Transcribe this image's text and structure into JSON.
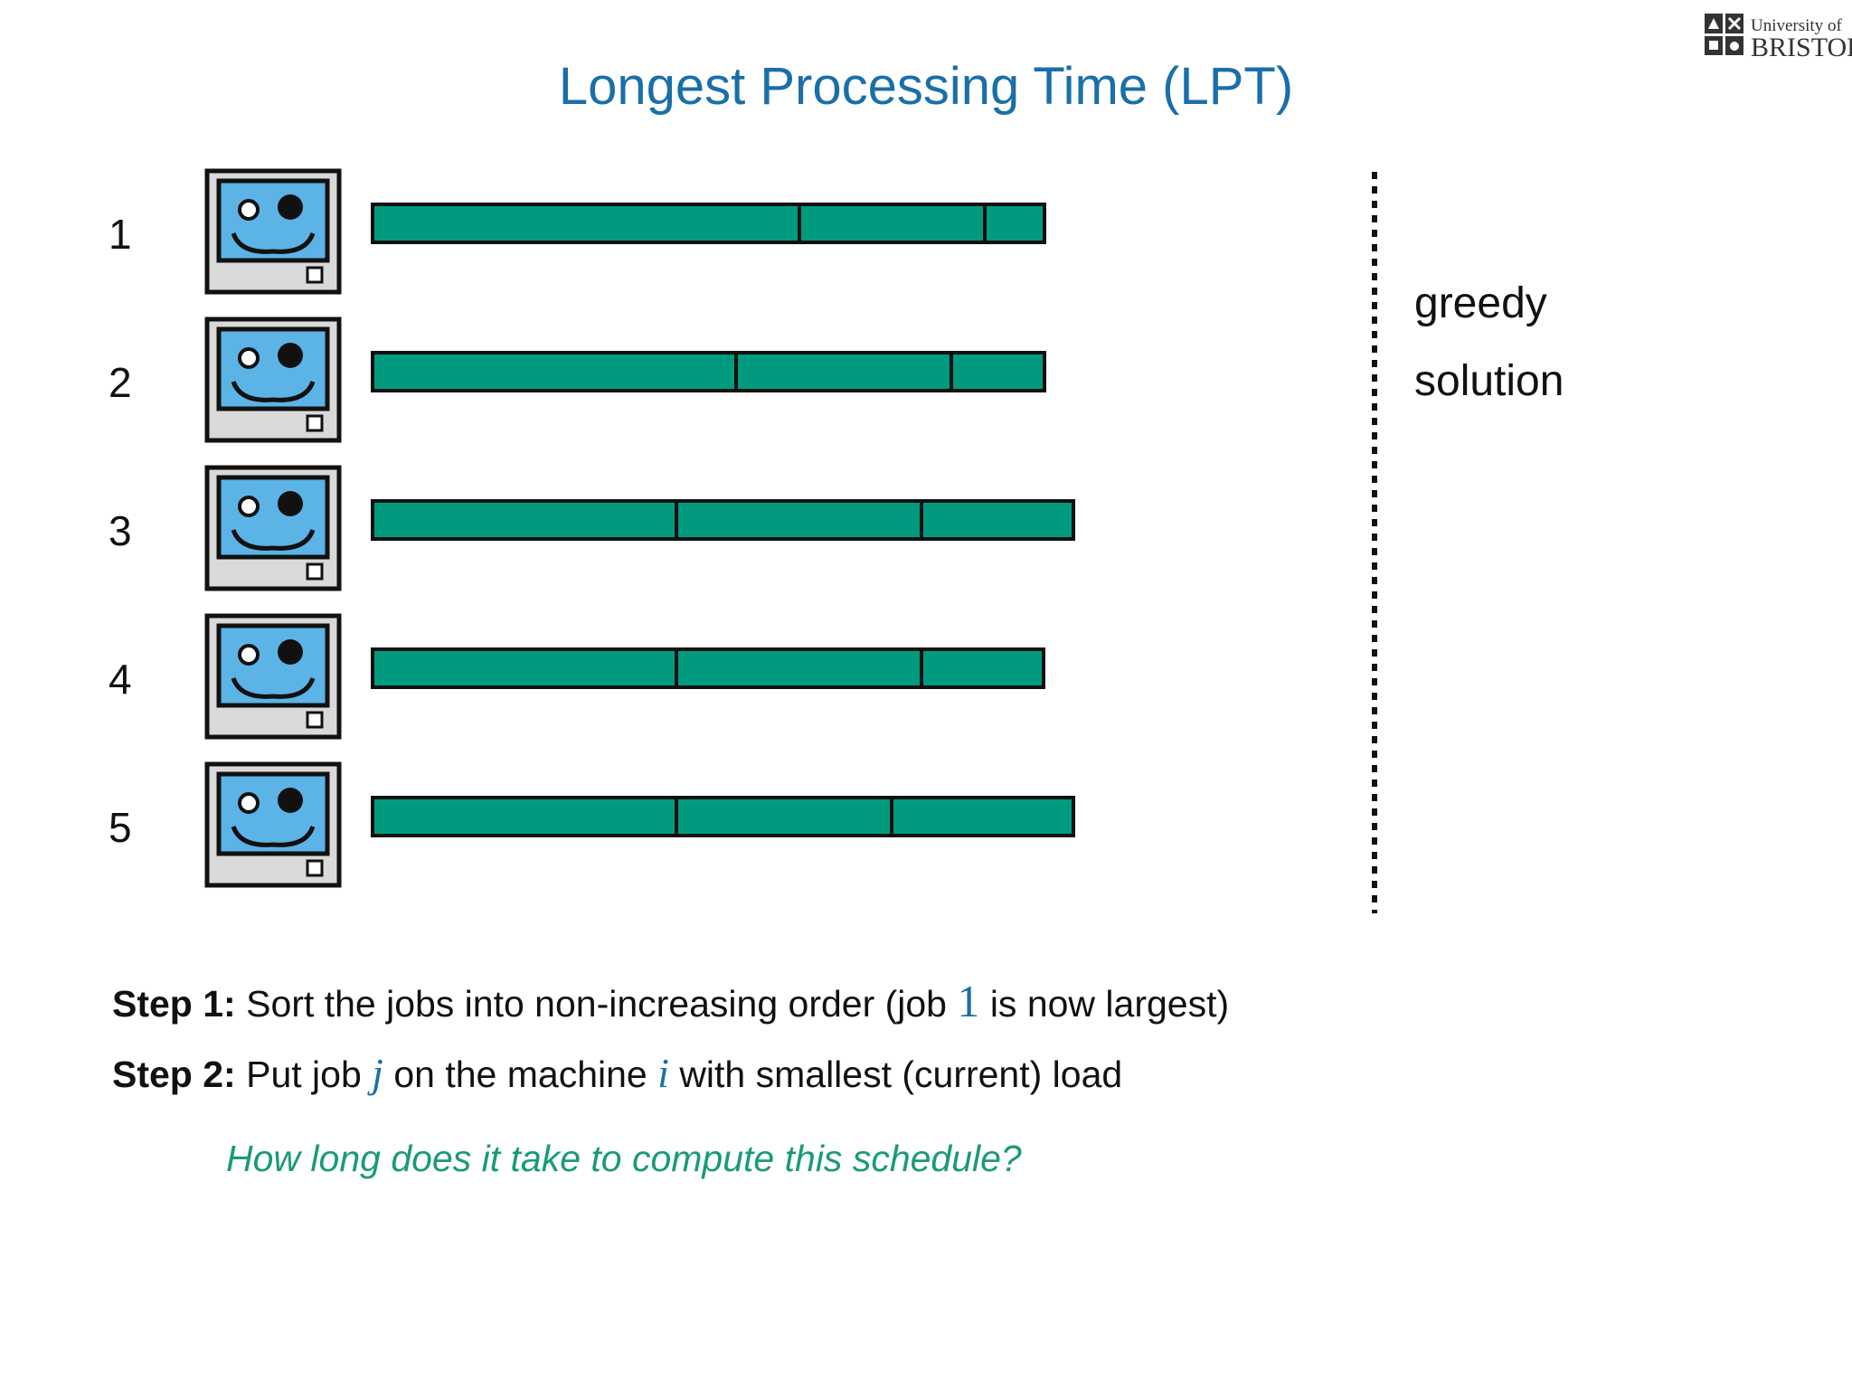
{
  "title": "Longest Processing Time (LPT)",
  "logo": {
    "line1": "University of",
    "line2": "BRISTOL"
  },
  "machines": [
    {
      "label": "1",
      "jobs": [
        5.75,
        2.5,
        0.8
      ]
    },
    {
      "label": "2",
      "jobs": [
        4.9,
        2.9,
        1.25
      ]
    },
    {
      "label": "3",
      "jobs": [
        4.1,
        3.3,
        2.05
      ]
    },
    {
      "label": "4",
      "jobs": [
        4.1,
        3.3,
        1.65
      ]
    },
    {
      "label": "5",
      "jobs": [
        4.1,
        2.9,
        2.45
      ]
    }
  ],
  "side_labels": [
    "greedy",
    "solution"
  ],
  "steps": [
    {
      "label": "Step 1:",
      "text_before": "Sort the jobs into non-increasing order (job",
      "math": "1",
      "text_after": "is now largest)"
    },
    {
      "label": "Step 2:",
      "text_before": "Put job",
      "math1": "j",
      "text_middle": "on the machine",
      "math2": "i",
      "text_after": "with smallest (current) load"
    }
  ],
  "question": "How long does it take to compute this schedule?",
  "colors": {
    "title": "#1a6fa8",
    "job_fill": "#009b7f",
    "question": "#1a9a78",
    "screen": "#5cb3e6"
  }
}
